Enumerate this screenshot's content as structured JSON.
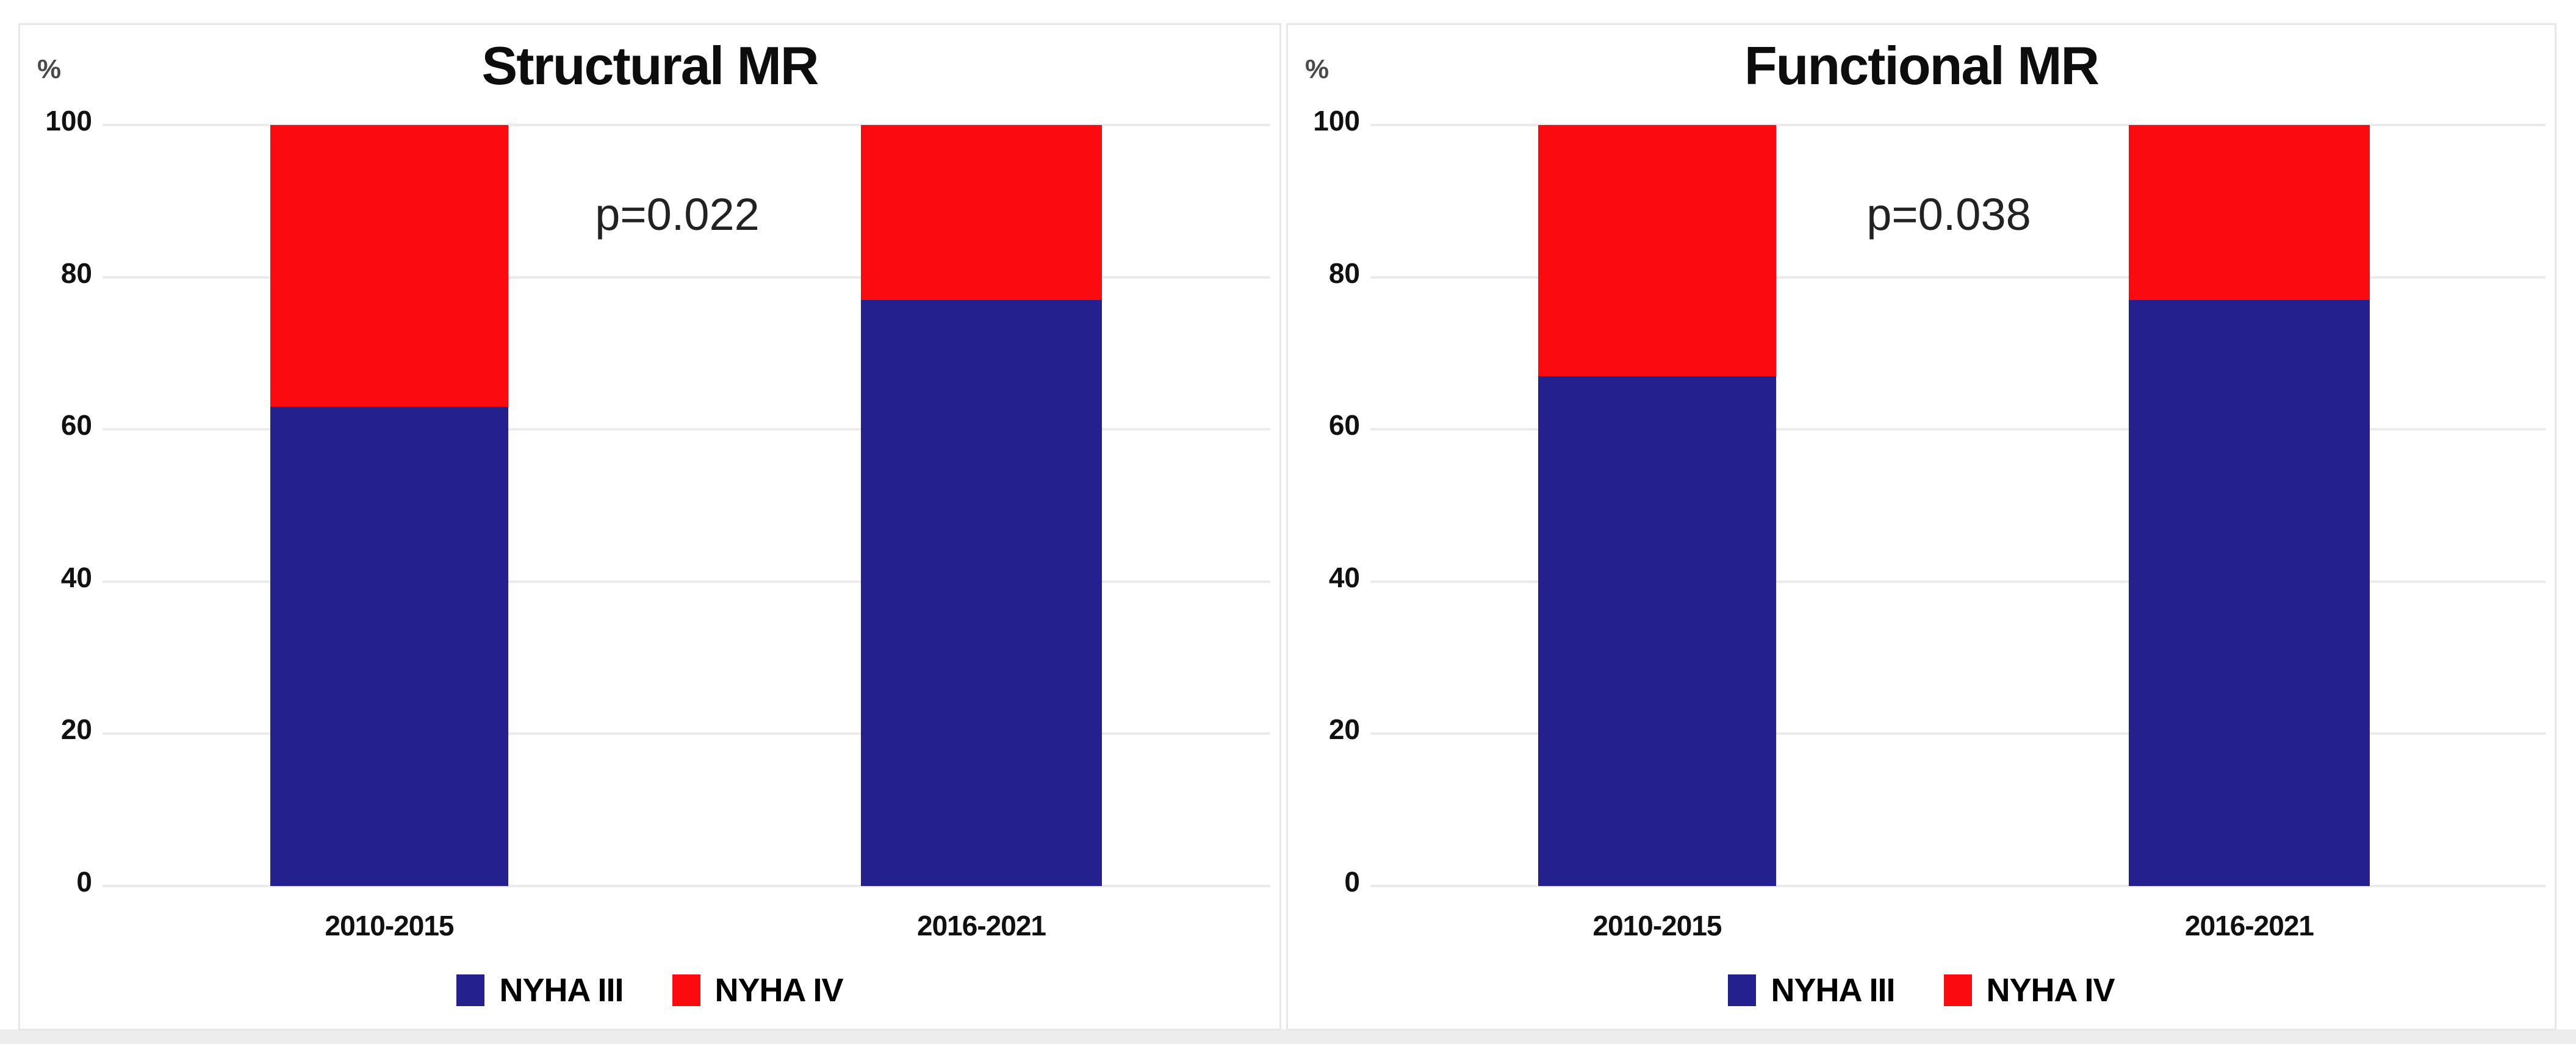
{
  "figure_background": "#ffffff",
  "panel_border_color": "#e7e7e7",
  "gridline_color": "#ebebeb",
  "chart_data": [
    {
      "type": "bar",
      "stacked": true,
      "title": "Structural MR",
      "p_label": "p=0.022",
      "ylabel": "%",
      "ylim": [
        0,
        100
      ],
      "yticks": [
        0,
        20,
        40,
        60,
        80,
        100
      ],
      "grid": true,
      "legend_position": "bottom",
      "categories": [
        "2010-2015",
        "2016-2021"
      ],
      "series": [
        {
          "name": "NYHA III",
          "color": "#24218f",
          "values": [
            63,
            77
          ]
        },
        {
          "name": "NYHA IV",
          "color": "#fb0a0f",
          "values": [
            37,
            23
          ]
        }
      ]
    },
    {
      "type": "bar",
      "stacked": true,
      "title": "Functional MR",
      "p_label": "p=0.038",
      "ylabel": "%",
      "ylim": [
        0,
        100
      ],
      "yticks": [
        0,
        20,
        40,
        60,
        80,
        100
      ],
      "grid": true,
      "legend_position": "bottom",
      "categories": [
        "2010-2015",
        "2016-2021"
      ],
      "series": [
        {
          "name": "NYHA III",
          "color": "#24218f",
          "values": [
            67,
            77
          ]
        },
        {
          "name": "NYHA IV",
          "color": "#fb0a0f",
          "values": [
            33,
            23
          ]
        }
      ]
    }
  ]
}
